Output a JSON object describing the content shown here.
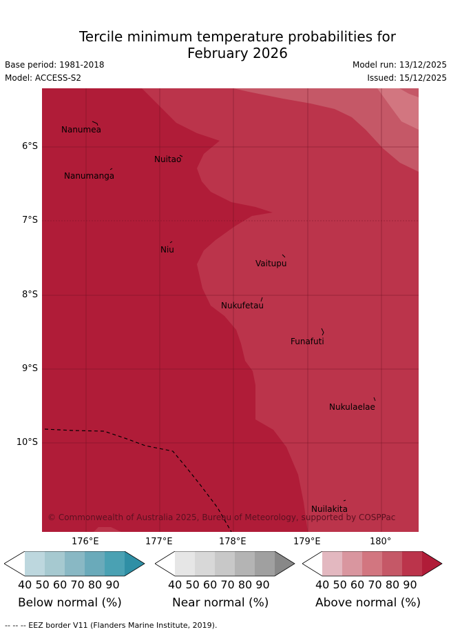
{
  "header": {
    "title_line1": "Tercile minimum temperature probabilities for",
    "title_line2": "February 2026",
    "base_period": "Base period: 1981-2018",
    "model": "Model: ACCESS-S2",
    "model_run": "Model run: 13/12/2025",
    "issued": "Issued: 15/12/2025"
  },
  "map": {
    "islands": [
      "Nanumea",
      "Nuitao",
      "Nanumanga",
      "Niu",
      "Vaitupu",
      "Nukufetau",
      "Funafuti",
      "Nukulaelae",
      "Nuilakita"
    ],
    "lat_labels": [
      "6°S",
      "7°S",
      "8°S",
      "9°S",
      "10°S"
    ],
    "lon_labels": [
      "176°E",
      "177°E",
      "178°E",
      "179°E",
      "180°"
    ],
    "copyright": "© Commonwealth of Australia 2025, Bureau of Meteorology, supported by COSPPac"
  },
  "colorbars": [
    {
      "label": "Below normal (%)",
      "ticks": [
        "40",
        "50",
        "60",
        "70",
        "80",
        "90"
      ],
      "colors": [
        "#ffffff",
        "#bdd7de",
        "#a6c9d0",
        "#89b8c4",
        "#6aaaba",
        "#4aa1b3",
        "#2f8fa5"
      ]
    },
    {
      "label": "Near normal (%)",
      "ticks": [
        "40",
        "50",
        "60",
        "70",
        "80",
        "90"
      ],
      "colors": [
        "#ffffff",
        "#e6e6e6",
        "#d8d8d8",
        "#c8c8c8",
        "#b4b4b4",
        "#a0a0a0",
        "#888888"
      ]
    },
    {
      "label": "Above normal (%)",
      "ticks": [
        "40",
        "50",
        "60",
        "70",
        "80",
        "90"
      ],
      "colors": [
        "#ffffff",
        "#e3b8c0",
        "#d9969f",
        "#d27680",
        "#c55867",
        "#bb344b",
        "#b01c38"
      ]
    }
  ],
  "footnote": "-- -- -- EEZ border V11 (Flanders Marine Institute, 2019).",
  "colors": {
    "p90": "#b01c38",
    "p80": "#bb344b",
    "p70": "#c55867",
    "p60": "#d27680"
  }
}
